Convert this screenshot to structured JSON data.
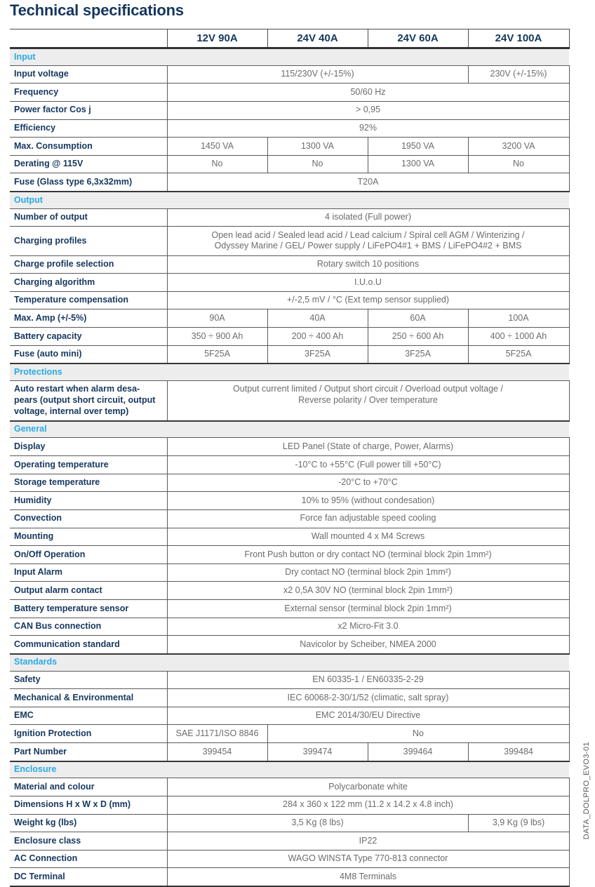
{
  "page": {
    "title": "Technical specifications",
    "side_label": "DATA_DOLPRO_EVO3-01"
  },
  "colors": {
    "navy": "#17375e",
    "cyan": "#2baae2",
    "value_gray": "#6b6c6f",
    "band_bg": "#ededee",
    "border": "#5a5a5c"
  },
  "table": {
    "columns": [
      "12V 90A",
      "24V 40A",
      "24V 60A",
      "24V 100A"
    ],
    "sections": [
      {
        "name": "Input",
        "rows": [
          {
            "label": "Input voltage",
            "cells": [
              {
                "text": "115/230V (+/-15%)",
                "span": 3
              },
              {
                "text": "230V (+/-15%)",
                "span": 1
              }
            ]
          },
          {
            "label": "Frequency",
            "cells": [
              {
                "text": "50/60 Hz",
                "span": 4
              }
            ]
          },
          {
            "label": "Power factor Cos j",
            "cells": [
              {
                "text": "> 0,95",
                "span": 4
              }
            ]
          },
          {
            "label": "Efficiency",
            "cells": [
              {
                "text": "92%",
                "span": 4
              }
            ]
          },
          {
            "label": "Max. Consumption",
            "cells": [
              {
                "text": "1450 VA"
              },
              {
                "text": "1300 VA"
              },
              {
                "text": "1950 VA"
              },
              {
                "text": "3200 VA"
              }
            ]
          },
          {
            "label": "Derating @ 115V",
            "cells": [
              {
                "text": "No"
              },
              {
                "text": "No"
              },
              {
                "text": "1300 VA"
              },
              {
                "text": "No"
              }
            ]
          },
          {
            "label": "Fuse (Glass type 6,3x32mm)",
            "cells": [
              {
                "text": "T20A",
                "span": 4
              }
            ]
          }
        ]
      },
      {
        "name": "Output",
        "rows": [
          {
            "label": "Number of output",
            "cells": [
              {
                "text": "4 isolated (Full power)",
                "span": 4
              }
            ]
          },
          {
            "label": "Charging profiles",
            "cells": [
              {
                "text": "Open lead acid / Sealed lead acid / Lead calcium / Spiral cell AGM / Winterizing /\nOdyssey Marine / GEL/ Power supply / LiFePO4#1 + BMS / LiFePO4#2 + BMS",
                "span": 4
              }
            ]
          },
          {
            "label": "Charge profile selection",
            "cells": [
              {
                "text": "Rotary switch 10 positions",
                "span": 4
              }
            ]
          },
          {
            "label": "Charging algorithm",
            "cells": [
              {
                "text": "I.U.o.U",
                "span": 4
              }
            ]
          },
          {
            "label": "Temperature compensation",
            "cells": [
              {
                "text": "+/-2,5 mV / °C (Ext temp sensor supplied)",
                "span": 4
              }
            ]
          },
          {
            "label": "Max. Amp (+/-5%)",
            "cells": [
              {
                "text": "90A"
              },
              {
                "text": "40A"
              },
              {
                "text": "60A"
              },
              {
                "text": "100A"
              }
            ]
          },
          {
            "label": "Battery capacity",
            "cells": [
              {
                "text": "350 ÷ 900 Ah"
              },
              {
                "text": "200 ÷ 400 Ah"
              },
              {
                "text": "250 ÷ 600 Ah"
              },
              {
                "text": "400 ÷ 1000 Ah"
              }
            ]
          },
          {
            "label": "Fuse (auto mini)",
            "cells": [
              {
                "text": "5F25A"
              },
              {
                "text": "3F25A"
              },
              {
                "text": "3F25A"
              },
              {
                "text": "5F25A"
              }
            ]
          }
        ]
      },
      {
        "name": "Protections",
        "rows": [
          {
            "label": "Auto restart when alarm desa-\npears (output short circuit, output\nvoltage, internal over temp)",
            "top": true,
            "cells": [
              {
                "text": "Output current limited / Output short circuit / Overload output voltage /\nReverse polarity / Over temperature",
                "span": 4
              }
            ]
          }
        ]
      },
      {
        "name": "General",
        "rows": [
          {
            "label": "Display",
            "cells": [
              {
                "text": "LED Panel (State of charge, Power, Alarms)",
                "span": 4
              }
            ]
          },
          {
            "label": "Operating temperature",
            "cells": [
              {
                "text": "-10°C to +55°C (Full power till +50°C)",
                "span": 4
              }
            ]
          },
          {
            "label": "Storage temperature",
            "cells": [
              {
                "text": "-20°C to +70°C",
                "span": 4
              }
            ]
          },
          {
            "label": "Humidity",
            "cells": [
              {
                "text": "10% to 95% (without condesation)",
                "span": 4
              }
            ]
          },
          {
            "label": "Convection",
            "cells": [
              {
                "text": "Force fan adjustable speed cooling",
                "span": 4
              }
            ]
          },
          {
            "label": "Mounting",
            "cells": [
              {
                "text": "Wall mounted 4 x M4 Screws",
                "span": 4
              }
            ]
          },
          {
            "label": "On/Off Operation",
            "cells": [
              {
                "text": "Front Push button or dry contact NO (terminal block 2pin 1mm²)",
                "span": 4
              }
            ]
          },
          {
            "label": "Input Alarm",
            "cells": [
              {
                "text": "Dry contact NO (terminal block 2pin 1mm²)",
                "span": 4
              }
            ]
          },
          {
            "label": "Output alarm contact",
            "cells": [
              {
                "text": "x2 0,5A 30V NO (terminal block 2pin 1mm²)",
                "span": 4
              }
            ]
          },
          {
            "label": "Battery temperature sensor",
            "cells": [
              {
                "text": "External sensor (terminal block 2pin 1mm²)",
                "span": 4
              }
            ]
          },
          {
            "label": "CAN Bus connection",
            "cells": [
              {
                "text": "x2 Micro-Fit 3.0",
                "span": 4
              }
            ]
          },
          {
            "label": "Communication standard",
            "cells": [
              {
                "text": "Navicolor by Scheiber, NMEA 2000",
                "span": 4
              }
            ]
          }
        ]
      },
      {
        "name": "Standards",
        "rows": [
          {
            "label": "Safety",
            "cells": [
              {
                "text": "EN 60335-1 / EN60335-2-29",
                "span": 4
              }
            ]
          },
          {
            "label": "Mechanical & Environmental",
            "cells": [
              {
                "text": "IEC 60068-2-30/1/52 (climatic, salt spray)",
                "span": 4
              }
            ]
          },
          {
            "label": "EMC",
            "cells": [
              {
                "text": "EMC 2014/30/EU Directive",
                "span": 4
              }
            ]
          },
          {
            "label": "Ignition Protection",
            "cells": [
              {
                "text": "SAE J1171/ISO 8846",
                "span": 1
              },
              {
                "text": "No",
                "span": 3
              }
            ]
          },
          {
            "label": "Part Number",
            "cells": [
              {
                "text": "399454"
              },
              {
                "text": "399474"
              },
              {
                "text": "399464"
              },
              {
                "text": "399484"
              }
            ]
          }
        ]
      },
      {
        "name": "Enclosure",
        "rows": [
          {
            "label": "Material and colour",
            "cells": [
              {
                "text": "Polycarbonate white",
                "span": 4
              }
            ]
          },
          {
            "label": "Dimensions H x W x D (mm)",
            "cells": [
              {
                "text": "284 x 360 x 122 mm (11.2 x 14.2 x 4.8 inch)",
                "span": 4
              }
            ]
          },
          {
            "label": "Weight kg (lbs)",
            "cells": [
              {
                "text": "3,5 Kg (8 lbs)",
                "span": 3
              },
              {
                "text": "3,9 Kg (9 lbs)",
                "span": 1
              }
            ]
          },
          {
            "label": "Enclosure class",
            "cells": [
              {
                "text": "IP22",
                "span": 4
              }
            ]
          },
          {
            "label": "AC Connection",
            "cells": [
              {
                "text": "WAGO WINSTA Type 770-813 connector",
                "span": 4
              }
            ]
          },
          {
            "label": "DC Terminal",
            "cells": [
              {
                "text": "4M8 Terminals",
                "span": 4
              }
            ]
          }
        ]
      }
    ]
  }
}
